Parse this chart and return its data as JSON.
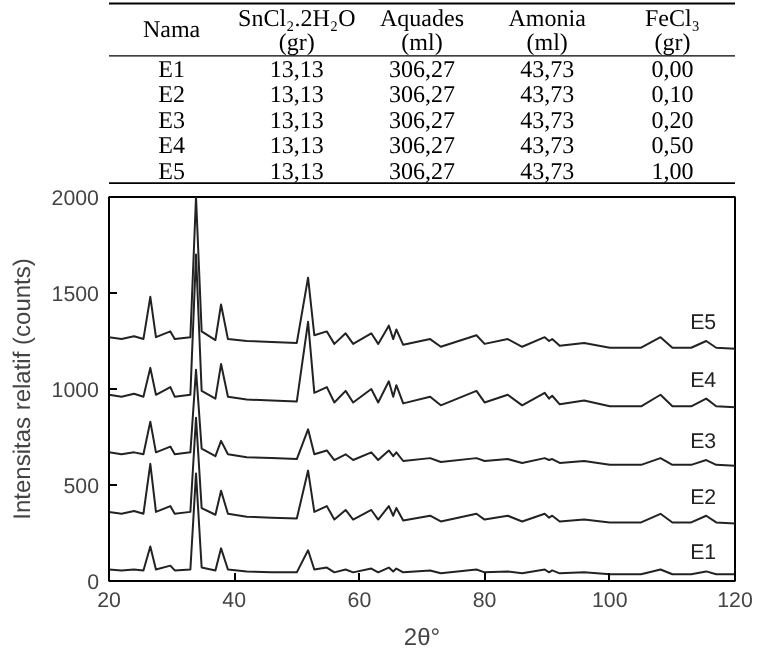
{
  "chart_data": [
    {
      "type": "other",
      "ylabel": "Nama",
      "categories": [
        "SnCl₂.2H₂O\n(gr)",
        "Aquades\n(ml)",
        "Amonia\n(ml)",
        "FeCl₃\n(gr)"
      ],
      "y_categories": [
        "E1",
        "E2",
        "E3",
        "E4",
        "E5"
      ],
      "cell_labels": [
        [
          "13,13",
          "306,27",
          "43,73",
          "0,00"
        ],
        [
          "13,13",
          "306,27",
          "43,73",
          "0,10"
        ],
        [
          "13,13",
          "306,27",
          "43,73",
          "0,20"
        ],
        [
          "13,13",
          "306,27",
          "43,73",
          "0,50"
        ],
        [
          "13,13",
          "306,27",
          "43,73",
          "1,00"
        ]
      ]
    },
    {
      "type": "line",
      "xlabel": "2θ°",
      "ylabel": "Intensitas relatif (counts)",
      "xlim": [
        20,
        120
      ],
      "ylim": [
        0,
        2000
      ],
      "xticks": [
        20,
        40,
        60,
        80,
        100,
        120
      ],
      "yticks": [
        0,
        500,
        1000,
        1500,
        2000
      ],
      "grid": false,
      "x": [
        20,
        22,
        24,
        25.5,
        26.6,
        27.5,
        29.8,
        30.5,
        33,
        33.9,
        34.8,
        37,
        37.9,
        39,
        42,
        46,
        50,
        51.8,
        52.8,
        54.8,
        56,
        57.8,
        59,
        61.9,
        63,
        64.7,
        65.4,
        65.9,
        67,
        71.3,
        73,
        78.7,
        80,
        83.7,
        86,
        89.6,
        90.3,
        90.8,
        92,
        95.9,
        100,
        105,
        108.1,
        110,
        113,
        115.4,
        117,
        120
      ],
      "series": [
        {
          "name": "E1",
          "color": "#222222",
          "values": [
            60,
            55,
            60,
            55,
            180,
            60,
            80,
            55,
            60,
            560,
            70,
            55,
            170,
            60,
            50,
            45,
            45,
            160,
            60,
            70,
            45,
            60,
            45,
            65,
            45,
            70,
            50,
            65,
            45,
            55,
            40,
            60,
            45,
            50,
            40,
            60,
            45,
            55,
            40,
            45,
            35,
            35,
            60,
            35,
            35,
            50,
            35,
            35
          ]
        },
        {
          "name": "E2",
          "color": "#222222",
          "values": [
            360,
            350,
            365,
            350,
            610,
            360,
            390,
            350,
            360,
            850,
            380,
            345,
            470,
            350,
            335,
            330,
            325,
            575,
            360,
            390,
            320,
            370,
            320,
            370,
            320,
            390,
            340,
            380,
            315,
            340,
            310,
            350,
            320,
            340,
            310,
            350,
            330,
            340,
            310,
            320,
            305,
            305,
            350,
            305,
            305,
            340,
            305,
            300
          ]
        },
        {
          "name": "E3",
          "color": "#222222",
          "values": [
            670,
            660,
            670,
            660,
            830,
            670,
            700,
            660,
            670,
            1100,
            690,
            650,
            730,
            660,
            645,
            640,
            635,
            790,
            660,
            680,
            630,
            660,
            630,
            670,
            630,
            680,
            650,
            670,
            625,
            640,
            620,
            640,
            625,
            635,
            615,
            640,
            630,
            635,
            615,
            625,
            605,
            605,
            640,
            605,
            605,
            630,
            605,
            600
          ]
        },
        {
          "name": "E4",
          "color": "#222222",
          "values": [
            970,
            960,
            975,
            960,
            1110,
            970,
            1010,
            960,
            970,
            1700,
            990,
            950,
            1130,
            960,
            945,
            940,
            935,
            1350,
            980,
            1010,
            930,
            990,
            930,
            1000,
            930,
            1040,
            960,
            1020,
            925,
            960,
            915,
            990,
            930,
            970,
            915,
            980,
            950,
            965,
            920,
            940,
            910,
            910,
            970,
            910,
            910,
            950,
            910,
            905
          ]
        },
        {
          "name": "E5",
          "color": "#222222",
          "values": [
            1270,
            1260,
            1275,
            1260,
            1480,
            1270,
            1300,
            1260,
            1270,
            2000,
            1300,
            1255,
            1440,
            1260,
            1250,
            1245,
            1240,
            1580,
            1280,
            1300,
            1235,
            1290,
            1235,
            1290,
            1235,
            1330,
            1260,
            1310,
            1230,
            1260,
            1220,
            1280,
            1235,
            1260,
            1220,
            1270,
            1250,
            1260,
            1225,
            1240,
            1215,
            1215,
            1270,
            1215,
            1215,
            1250,
            1215,
            1210
          ]
        }
      ]
    }
  ]
}
